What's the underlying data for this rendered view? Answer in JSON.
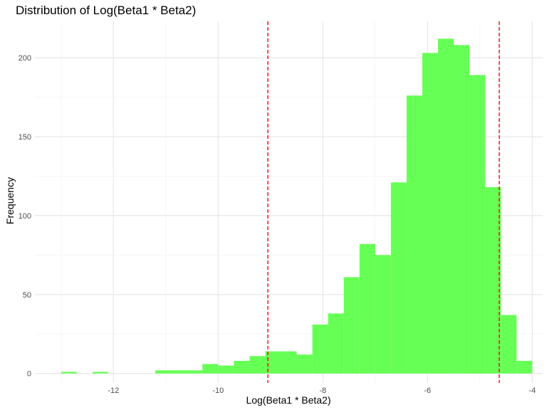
{
  "chart_data": {
    "type": "bar",
    "title": "Distribution of Log(Beta1 * Beta2)",
    "xlabel": "Log(Beta1 * Beta2)",
    "ylabel": "Frequency",
    "xlim": [
      -13.5,
      -3.8
    ],
    "ylim": [
      -6,
      223
    ],
    "x_ticks": [
      -12,
      -10,
      -8,
      -6,
      -4
    ],
    "x_tick_labels": [
      "-12",
      "-10",
      "-8",
      "-6",
      "-4"
    ],
    "y_ticks": [
      0,
      50,
      100,
      150,
      200
    ],
    "y_tick_labels": [
      "0",
      "50",
      "100",
      "150",
      "200"
    ],
    "bin_width": 0.3,
    "bins": [
      {
        "x0": -13.0,
        "x1": -12.7,
        "count": 1
      },
      {
        "x0": -12.7,
        "x1": -12.4,
        "count": 0
      },
      {
        "x0": -12.4,
        "x1": -12.1,
        "count": 1
      },
      {
        "x0": -12.1,
        "x1": -11.8,
        "count": 0
      },
      {
        "x0": -11.8,
        "x1": -11.5,
        "count": 0
      },
      {
        "x0": -11.5,
        "x1": -11.2,
        "count": 0
      },
      {
        "x0": -11.2,
        "x1": -10.9,
        "count": 2
      },
      {
        "x0": -10.9,
        "x1": -10.6,
        "count": 2
      },
      {
        "x0": -10.6,
        "x1": -10.3,
        "count": 2
      },
      {
        "x0": -10.3,
        "x1": -10.0,
        "count": 6
      },
      {
        "x0": -10.0,
        "x1": -9.7,
        "count": 5
      },
      {
        "x0": -9.7,
        "x1": -9.4,
        "count": 8
      },
      {
        "x0": -9.4,
        "x1": -9.1,
        "count": 11
      },
      {
        "x0": -9.1,
        "x1": -8.8,
        "count": 14
      },
      {
        "x0": -8.8,
        "x1": -8.5,
        "count": 14
      },
      {
        "x0": -8.5,
        "x1": -8.2,
        "count": 12
      },
      {
        "x0": -8.2,
        "x1": -7.9,
        "count": 31
      },
      {
        "x0": -7.9,
        "x1": -7.6,
        "count": 38
      },
      {
        "x0": -7.6,
        "x1": -7.3,
        "count": 61
      },
      {
        "x0": -7.3,
        "x1": -7.0,
        "count": 82
      },
      {
        "x0": -7.0,
        "x1": -6.7,
        "count": 75
      },
      {
        "x0": -6.7,
        "x1": -6.4,
        "count": 121
      },
      {
        "x0": -6.4,
        "x1": -6.1,
        "count": 176
      },
      {
        "x0": -6.1,
        "x1": -5.8,
        "count": 203
      },
      {
        "x0": -5.8,
        "x1": -5.5,
        "count": 212
      },
      {
        "x0": -5.5,
        "x1": -5.2,
        "count": 208
      },
      {
        "x0": -5.2,
        "x1": -4.9,
        "count": 189
      },
      {
        "x0": -4.9,
        "x1": -4.6,
        "count": 118
      },
      {
        "x0": -4.6,
        "x1": -4.3,
        "count": 37
      },
      {
        "x0": -4.3,
        "x1": -4.0,
        "count": 8
      }
    ],
    "reference_lines": [
      -9.05,
      -4.63
    ],
    "bar_color": "#66ff55",
    "reference_line_color": "#ff0000",
    "grid": true,
    "legend": "none"
  }
}
